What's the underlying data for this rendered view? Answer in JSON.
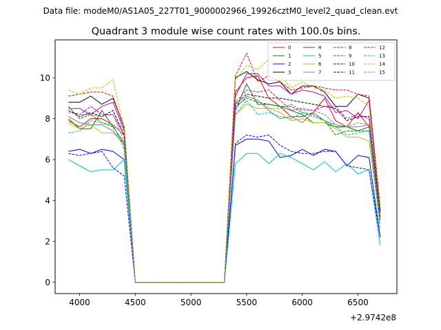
{
  "chart_data": {
    "type": "line",
    "suptitle": "Data file: modeM0/AS1A05_227T01_9000002966_19926cztM0_level2_quad_clean.evt",
    "title": "Quadrant 3 module wise count rates with 100.0s bins.",
    "xlabel": "",
    "ylabel": "",
    "x_offset_label": "+2.9742e8",
    "xlim": [
      3780,
      6850
    ],
    "ylim": [
      -0.55,
      11.85
    ],
    "x_ticks": [
      4000,
      4500,
      5000,
      5500,
      6000,
      6500
    ],
    "y_ticks": [
      0,
      2,
      4,
      6,
      8,
      10
    ],
    "x": [
      3900,
      4000,
      4100,
      4200,
      4300,
      4400,
      4500,
      4600,
      4700,
      4800,
      4900,
      5000,
      5100,
      5200,
      5300,
      5400,
      5500,
      5600,
      5700,
      5800,
      5900,
      6000,
      6100,
      6200,
      6300,
      6400,
      6500,
      6600,
      6700
    ],
    "legend_location": "upper right",
    "series": [
      {
        "name": "0",
        "color": "#ff0000",
        "dash": "solid",
        "values": [
          7.9,
          7.6,
          8.0,
          8.0,
          7.7,
          7.2,
          0,
          0,
          0,
          0,
          0,
          0,
          0,
          0,
          0,
          9.3,
          10.0,
          10.1,
          9.0,
          8.6,
          8.1,
          8.1,
          8.3,
          9.0,
          7.9,
          7.6,
          8.3,
          7.6,
          3.1
        ]
      },
      {
        "name": "1",
        "color": "#008000",
        "dash": "solid",
        "values": [
          8.0,
          7.5,
          7.5,
          8.4,
          7.6,
          6.8,
          0,
          0,
          0,
          0,
          0,
          0,
          0,
          0,
          0,
          8.4,
          9.7,
          8.7,
          8.7,
          8.6,
          8.4,
          8.2,
          7.8,
          7.8,
          7.6,
          7.6,
          7.4,
          7.6,
          3.3
        ]
      },
      {
        "name": "2",
        "color": "#0000ff",
        "dash": "solid",
        "values": [
          6.4,
          6.5,
          6.3,
          6.5,
          6.4,
          6.0,
          0,
          0,
          0,
          0,
          0,
          0,
          0,
          0,
          0,
          6.7,
          7.0,
          7.0,
          6.9,
          6.1,
          6.2,
          6.5,
          6.2,
          6.5,
          6.4,
          5.7,
          6.2,
          6.1,
          2.2
        ]
      },
      {
        "name": "3",
        "color": "#000000",
        "dash": "solid",
        "values": [
          8.8,
          8.8,
          9.1,
          8.7,
          9.0,
          7.6,
          0,
          0,
          0,
          0,
          0,
          0,
          0,
          0,
          0,
          10.0,
          10.3,
          9.9,
          9.7,
          9.8,
          9.2,
          9.6,
          9.6,
          9.3,
          8.6,
          8.6,
          9.2,
          9.0,
          3.5
        ]
      },
      {
        "name": "4",
        "color": "#bf00bf",
        "dash": "solid",
        "values": [
          8.5,
          8.5,
          8.2,
          8.6,
          8.8,
          7.4,
          0,
          0,
          0,
          0,
          0,
          0,
          0,
          0,
          0,
          9.1,
          10.2,
          10.2,
          9.6,
          9.6,
          9.2,
          9.4,
          9.3,
          9.1,
          8.3,
          8.4,
          8.0,
          8.9,
          3.2
        ]
      },
      {
        "name": "5",
        "color": "#00bfbf",
        "dash": "solid",
        "values": [
          6.0,
          5.7,
          5.4,
          5.5,
          5.5,
          6.0,
          0,
          0,
          0,
          0,
          0,
          0,
          0,
          0,
          0,
          5.8,
          6.3,
          6.3,
          5.8,
          6.3,
          6.1,
          5.8,
          5.5,
          5.9,
          5.4,
          5.8,
          5.3,
          5.5,
          1.8
        ]
      },
      {
        "name": "6",
        "color": "#bfbf00",
        "dash": "solid",
        "values": [
          7.8,
          7.5,
          7.7,
          7.3,
          7.3,
          6.8,
          0,
          0,
          0,
          0,
          0,
          0,
          0,
          0,
          0,
          8.2,
          8.7,
          8.5,
          8.5,
          8.3,
          7.9,
          8.0,
          7.8,
          7.8,
          7.5,
          7.1,
          7.1,
          6.9,
          2.9
        ]
      },
      {
        "name": "7",
        "color": "#808080",
        "dash": "solid",
        "values": [
          8.1,
          7.8,
          7.7,
          7.7,
          7.4,
          6.7,
          0,
          0,
          0,
          0,
          0,
          0,
          0,
          0,
          0,
          8.5,
          9.1,
          8.9,
          8.4,
          8.0,
          8.1,
          7.8,
          8.3,
          7.9,
          7.7,
          7.6,
          7.6,
          7.7,
          3.2
        ]
      },
      {
        "name": "8",
        "color": "#ff0000",
        "dash": "dashed",
        "values": [
          9.1,
          9.2,
          9.3,
          9.3,
          9.1,
          7.5,
          0,
          0,
          0,
          0,
          0,
          0,
          0,
          0,
          0,
          10.1,
          11.2,
          9.8,
          10.1,
          9.8,
          9.4,
          9.5,
          9.6,
          9.5,
          9.4,
          9.4,
          9.2,
          9.1,
          3.7
        ]
      },
      {
        "name": "9",
        "color": "#008000",
        "dash": "dashed",
        "values": [
          8.6,
          8.0,
          8.2,
          7.8,
          7.6,
          6.8,
          0,
          0,
          0,
          0,
          0,
          0,
          0,
          0,
          0,
          8.6,
          9.0,
          8.8,
          8.7,
          8.6,
          8.6,
          8.3,
          8.2,
          7.9,
          7.2,
          7.4,
          7.4,
          7.4,
          3.0
        ]
      },
      {
        "name": "10",
        "color": "#0000ff",
        "dash": "dashed",
        "values": [
          6.3,
          6.2,
          6.3,
          6.4,
          5.6,
          5.2,
          0,
          0,
          0,
          0,
          0,
          0,
          0,
          0,
          0,
          6.8,
          7.2,
          7.1,
          7.2,
          6.7,
          6.4,
          6.3,
          6.3,
          6.4,
          6.4,
          5.7,
          5.6,
          5.5,
          2.2
        ]
      },
      {
        "name": "11",
        "color": "#000000",
        "dash": "dashed",
        "values": [
          8.4,
          8.1,
          8.3,
          8.1,
          8.4,
          7.2,
          0,
          0,
          0,
          0,
          0,
          0,
          0,
          0,
          0,
          8.7,
          9.2,
          9.1,
          9.0,
          9.0,
          8.9,
          8.8,
          8.7,
          8.6,
          8.5,
          7.9,
          8.1,
          8.1,
          3.4
        ]
      },
      {
        "name": "12",
        "color": "#bf00bf",
        "dash": "dashed",
        "values": [
          8.4,
          8.2,
          8.6,
          8.2,
          8.2,
          7.2,
          0,
          0,
          0,
          0,
          0,
          0,
          0,
          0,
          0,
          8.8,
          9.4,
          9.3,
          9.4,
          8.9,
          8.4,
          8.5,
          8.4,
          8.6,
          8.6,
          8.0,
          8.2,
          8.0,
          3.2
        ]
      },
      {
        "name": "13",
        "color": "#00bfbf",
        "dash": "dashed",
        "values": [
          7.3,
          7.4,
          7.9,
          7.8,
          7.7,
          6.5,
          0,
          0,
          0,
          0,
          0,
          0,
          0,
          0,
          0,
          8.2,
          8.9,
          8.2,
          8.3,
          8.1,
          8.0,
          8.3,
          8.1,
          7.9,
          7.6,
          7.2,
          7.3,
          7.4,
          2.6
        ]
      },
      {
        "name": "14",
        "color": "#bfbf00",
        "dash": "dashed",
        "values": [
          9.4,
          9.2,
          9.5,
          9.5,
          9.9,
          7.5,
          0,
          0,
          0,
          0,
          0,
          0,
          0,
          0,
          0,
          9.9,
          10.6,
          10.4,
          10.9,
          10.1,
          9.5,
          9.8,
          9.5,
          9.4,
          9.0,
          9.1,
          9.0,
          8.6,
          3.6
        ]
      },
      {
        "name": "15",
        "color": "#808080",
        "dash": "dashed",
        "values": [
          8.3,
          8.2,
          8.2,
          8.1,
          8.2,
          6.9,
          0,
          0,
          0,
          0,
          0,
          0,
          0,
          0,
          0,
          8.5,
          9.1,
          8.9,
          8.5,
          8.5,
          8.7,
          8.4,
          8.4,
          8.2,
          7.7,
          7.6,
          7.8,
          7.7,
          3.1
        ]
      }
    ]
  }
}
